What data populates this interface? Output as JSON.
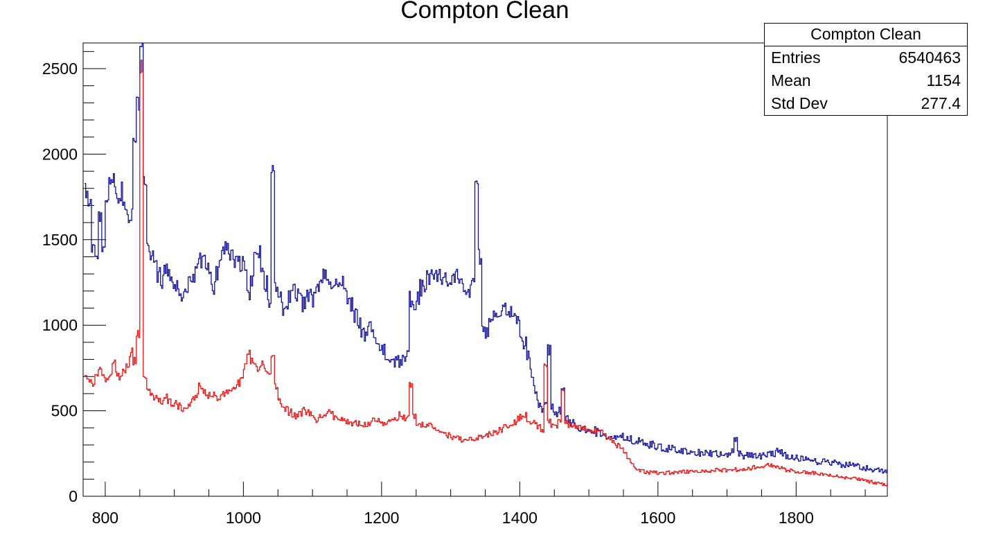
{
  "chart_data": {
    "type": "line",
    "style": "histogram-step",
    "title": "Compton Clean",
    "xlabel": "",
    "ylabel": "",
    "xlim": [
      768,
      1932
    ],
    "ylim": [
      0,
      2650
    ],
    "grid": false,
    "x_ticks_major": [
      800,
      1000,
      1200,
      1400,
      1600,
      1800
    ],
    "x_minor_step": 50,
    "y_ticks_major": [
      0,
      500,
      1000,
      1500,
      2000,
      2500
    ],
    "y_minor_step": 100,
    "stats_box": {
      "title": "Compton Clean",
      "rows": [
        {
          "label": "Entries",
          "value": "6540463"
        },
        {
          "label": "Mean",
          "value": "1154"
        },
        {
          "label": "Std Dev",
          "value": "277.4"
        }
      ]
    },
    "series": [
      {
        "name": "compton-clean-blue",
        "color": "#10109a",
        "noise_amp": 45,
        "x_start": 770,
        "x_step": 5,
        "values": [
          1790,
          1680,
          1450,
          1390,
          1610,
          1420,
          1720,
          1810,
          1860,
          1740,
          1780,
          1700,
          1620,
          1660,
          2080,
          2300,
          2650,
          1850,
          1440,
          1400,
          1380,
          1300,
          1250,
          1330,
          1290,
          1240,
          1230,
          1200,
          1160,
          1220,
          1260,
          1290,
          1330,
          1380,
          1420,
          1330,
          1270,
          1230,
          1310,
          1390,
          1450,
          1460,
          1400,
          1350,
          1390,
          1360,
          1340,
          1190,
          1260,
          1470,
          1420,
          1340,
          1240,
          1130,
          1900,
          1220,
          1150,
          1100,
          1070,
          1160,
          1230,
          1180,
          1140,
          1120,
          1170,
          1190,
          1150,
          1210,
          1240,
          1290,
          1250,
          1220,
          1270,
          1250,
          1280,
          1220,
          1170,
          1120,
          1060,
          1010,
          970,
          940,
          1000,
          970,
          910,
          870,
          850,
          830,
          810,
          790,
          810,
          780,
          800,
          830,
          1150,
          1090,
          1170,
          1220,
          1240,
          1270,
          1290,
          1280,
          1300,
          1280,
          1290,
          1270,
          1260,
          1280,
          1250,
          1240,
          1210,
          1190,
          1230,
          1870,
          1400,
          1000,
          950,
          1010,
          1050,
          1070,
          1090,
          1110,
          1090,
          1070,
          1050,
          1010,
          950,
          890,
          810,
          730,
          630,
          550,
          500,
          520,
          860,
          520,
          470,
          490,
          630,
          470,
          430,
          420,
          415,
          405,
          400,
          395,
          390,
          385,
          375,
          370,
          365,
          360,
          360,
          355,
          350,
          350,
          345,
          335,
          330,
          325,
          320,
          315,
          310,
          305,
          300,
          295,
          290,
          285,
          280,
          280,
          275,
          272,
          270,
          265,
          262,
          258,
          255,
          252,
          250,
          248,
          246,
          246,
          245,
          243,
          242,
          241,
          240,
          255,
          340,
          250,
          238,
          236,
          234,
          233,
          232,
          234,
          236,
          238,
          242,
          250,
          260,
          255,
          242,
          235,
          230,
          226,
          222,
          218,
          215,
          212,
          210,
          208,
          205,
          203,
          200,
          198,
          195,
          193,
          190,
          188,
          185,
          182,
          180,
          175,
          170,
          168,
          165,
          160,
          156,
          152,
          150,
          148,
          145
        ]
      },
      {
        "name": "compton-clean-red",
        "color": "#ee1111",
        "noise_amp": 30,
        "x_start": 770,
        "x_step": 5,
        "values": [
          700,
          670,
          640,
          700,
          760,
          690,
          665,
          700,
          790,
          720,
          700,
          730,
          760,
          840,
          790,
          950,
          2520,
          700,
          620,
          600,
          580,
          570,
          560,
          575,
          555,
          545,
          540,
          530,
          515,
          525,
          545,
          560,
          580,
          640,
          610,
          580,
          600,
          590,
          570,
          580,
          600,
          620,
          610,
          640,
          660,
          700,
          760,
          850,
          800,
          760,
          740,
          770,
          740,
          720,
          830,
          640,
          560,
          520,
          510,
          490,
          470,
          465,
          480,
          500,
          490,
          475,
          460,
          450,
          470,
          490,
          500,
          480,
          460,
          450,
          445,
          440,
          430,
          425,
          430,
          425,
          420,
          425,
          430,
          445,
          455,
          440,
          430,
          425,
          430,
          440,
          460,
          480,
          460,
          470,
          660,
          470,
          430,
          420,
          405,
          415,
          420,
          400,
          390,
          380,
          365,
          355,
          345,
          340,
          335,
          332,
          330,
          328,
          330,
          335,
          340,
          345,
          350,
          360,
          370,
          380,
          390,
          400,
          410,
          420,
          435,
          450,
          465,
          470,
          455,
          440,
          425,
          400,
          385,
          780,
          440,
          420,
          400,
          430,
          620,
          430,
          410,
          405,
          400,
          398,
          396,
          394,
          390,
          385,
          378,
          372,
          365,
          350,
          330,
          310,
          300,
          280,
          255,
          225,
          185,
          160,
          150,
          145,
          142,
          140,
          140,
          139,
          138,
          138,
          137,
          138,
          140,
          141,
          142,
          143,
          144,
          145,
          146,
          147,
          150,
          152,
          150,
          148,
          152,
          155,
          153,
          152,
          155,
          158,
          156,
          154,
          158,
          162,
          165,
          168,
          170,
          172,
          175,
          180,
          178,
          172,
          168,
          165,
          160,
          155,
          150,
          148,
          145,
          142,
          140,
          138,
          135,
          132,
          130,
          128,
          125,
          122,
          120,
          118,
          115,
          112,
          110,
          108,
          105,
          102,
          100,
          95,
          90,
          85,
          80,
          75,
          72,
          70,
          68
        ]
      }
    ]
  }
}
